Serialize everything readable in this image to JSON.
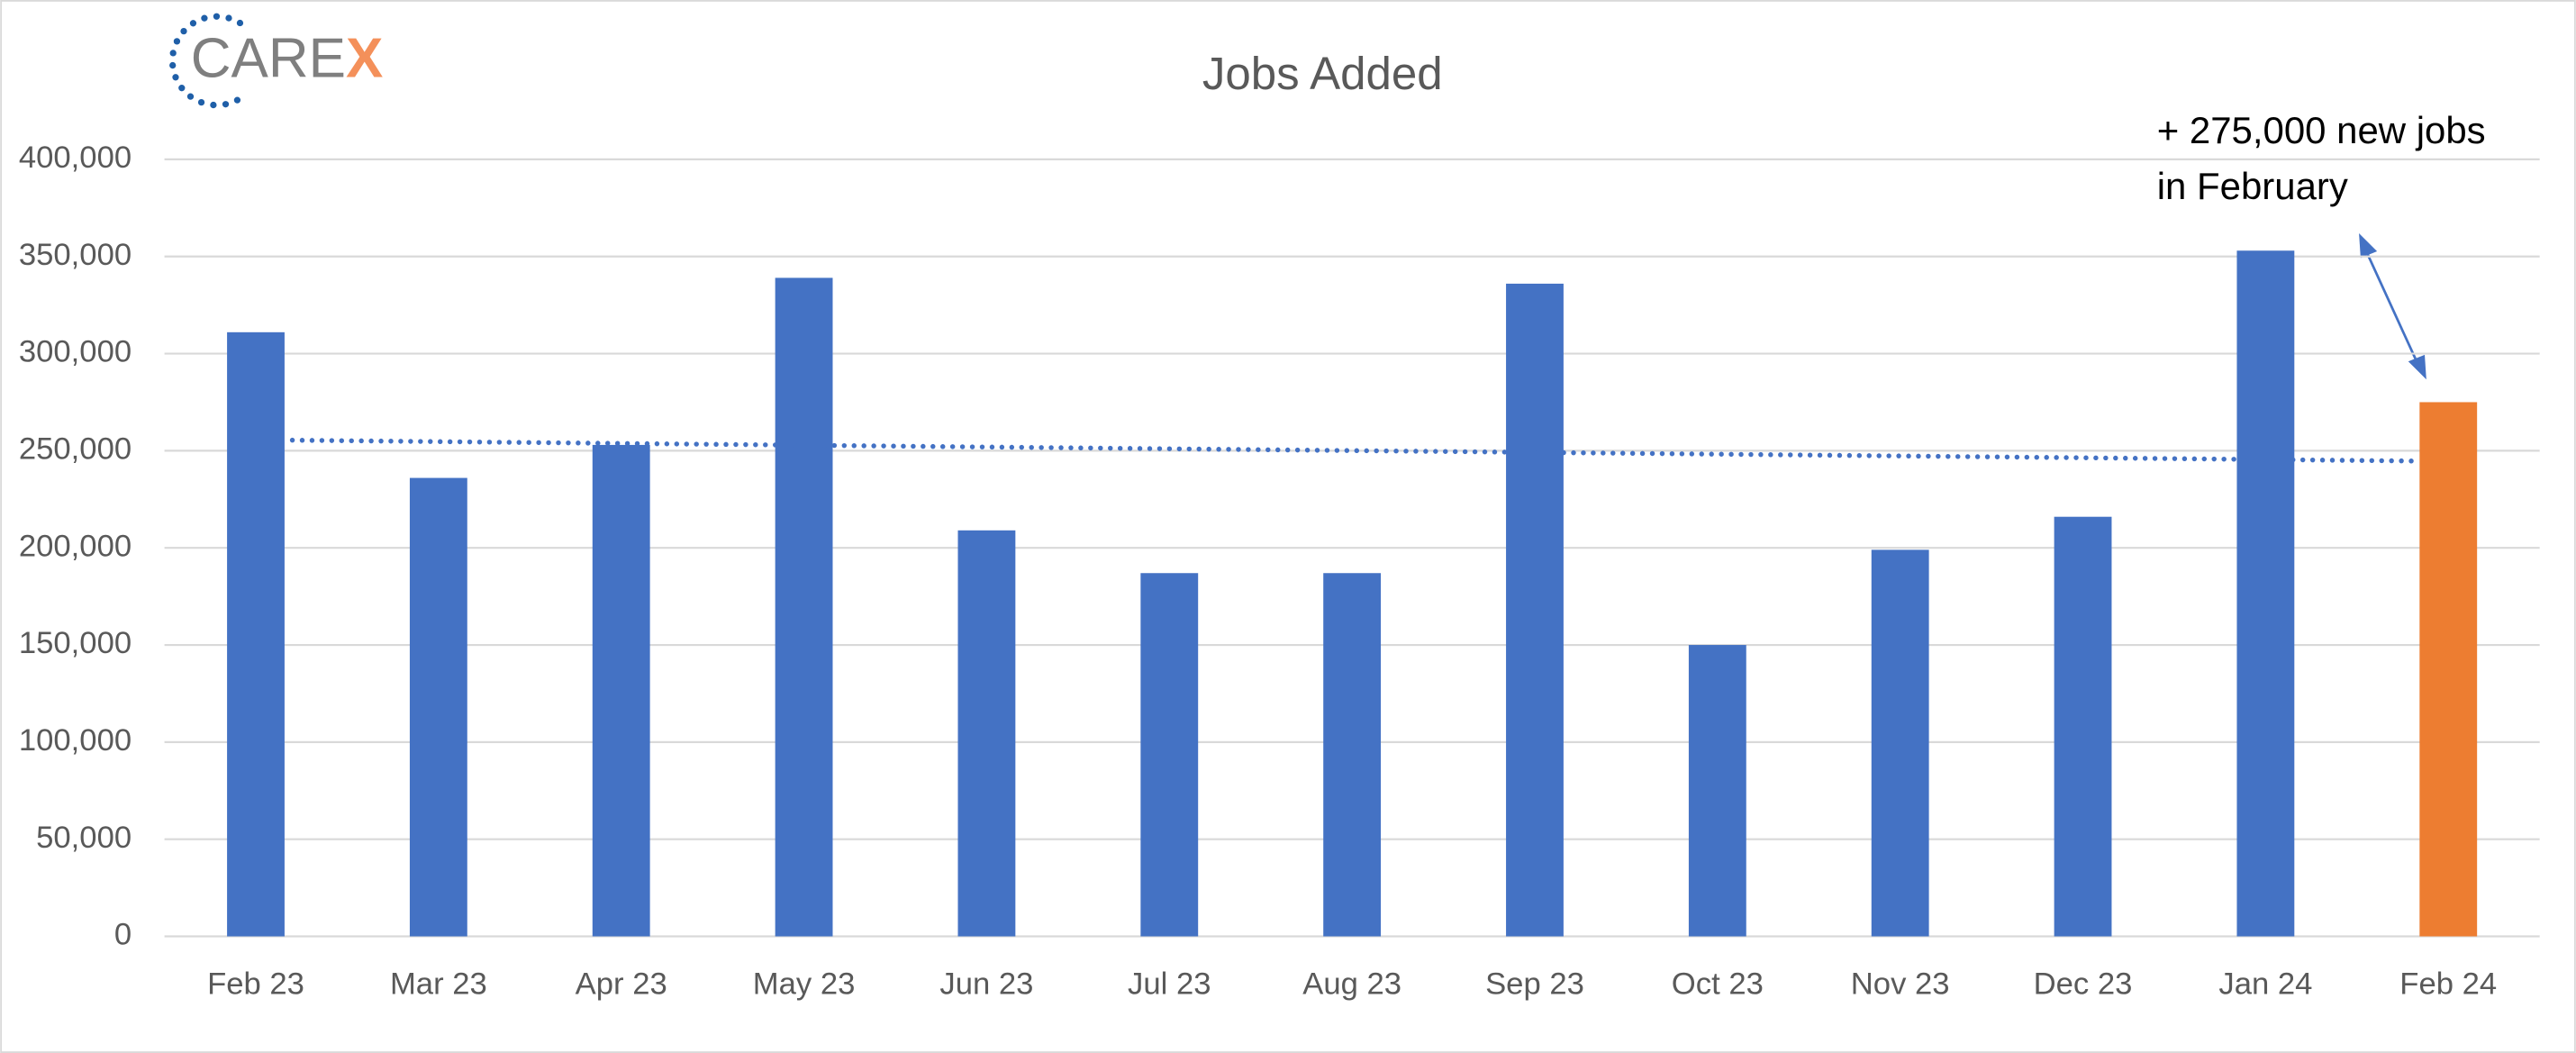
{
  "logo": [
    "CARE",
    "X"
  ],
  "chart_data": {
    "type": "bar",
    "title": "Jobs Added",
    "annotation": [
      "+ 275,000 new jobs",
      "in February"
    ],
    "categories": [
      "Feb 23",
      "Mar 23",
      "Apr 23",
      "May 23",
      "Jun 23",
      "Jul 23",
      "Aug 23",
      "Sep 23",
      "Oct 23",
      "Nov 23",
      "Dec 23",
      "Jan 24",
      "Feb 24"
    ],
    "values": [
      311000,
      236000,
      253000,
      339000,
      209000,
      187000,
      187000,
      336000,
      150000,
      199000,
      216000,
      353000,
      275000
    ],
    "colors": [
      "#4472c4",
      "#4472c4",
      "#4472c4",
      "#4472c4",
      "#4472c4",
      "#4472c4",
      "#4472c4",
      "#4472c4",
      "#4472c4",
      "#4472c4",
      "#4472c4",
      "#4472c4",
      "#ed7d31"
    ],
    "ylim": [
      0,
      400000
    ],
    "yticks": [
      0,
      {
        "value": 50000,
        "label": "50,000"
      },
      {
        "value": 100000,
        "label": "100,000"
      },
      {
        "value": 150000,
        "label": "150,000"
      },
      {
        "value": 200000,
        "label": "200,000"
      },
      {
        "value": 250000,
        "label": "250,000"
      },
      {
        "value": 300000,
        "label": "300,000"
      },
      {
        "value": 350000,
        "label": "350,000"
      },
      {
        "value": 400000,
        "label": "400,000"
      }
    ],
    "grid": true,
    "trendline": true,
    "trendline_color": "#4472c4"
  }
}
